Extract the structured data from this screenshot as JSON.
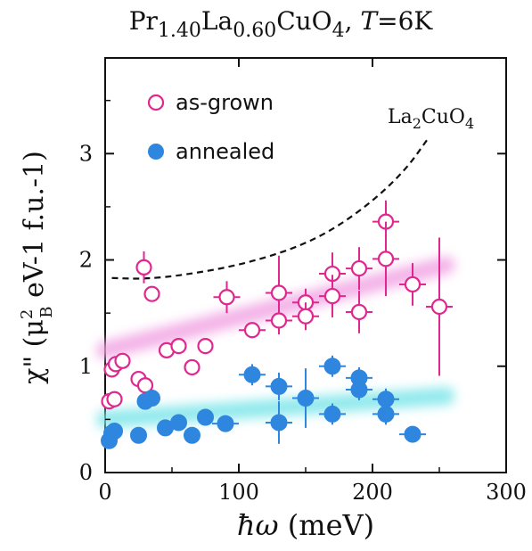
{
  "chart_data": {
    "type": "scatter",
    "title": {
      "parts": [
        {
          "text": "Pr",
          "sub": false
        },
        {
          "text": "1.40",
          "sub": true
        },
        {
          "text": "La",
          "sub": false
        },
        {
          "text": "0.60",
          "sub": true
        },
        {
          "text": "CuO",
          "sub": false
        },
        {
          "text": "4",
          "sub": true
        },
        {
          "text": ", ",
          "sub": false
        },
        {
          "text": "T",
          "sub": false,
          "italic": true
        },
        {
          "text": "=6K",
          "sub": false
        }
      ]
    },
    "xlabel": {
      "symbol": "ħω",
      "unit": " (meV)"
    },
    "ylabel": {
      "prefix": "χ\" (μ",
      "sup": "2",
      "sub": "B",
      "suffix": " eV-1 f.u.-1)"
    },
    "xlim": [
      0,
      300
    ],
    "ylim": [
      0,
      3.9
    ],
    "xticks": [
      0,
      100,
      200,
      300
    ],
    "yticks": [
      0,
      1,
      2,
      3
    ],
    "grid": false,
    "legend": {
      "placement": "top-left",
      "entries": [
        {
          "label": "as-grown",
          "marker": "open-circle",
          "color": "#e0268f"
        },
        {
          "label": "annealed",
          "marker": "filled-circle",
          "color": "#2e86de"
        }
      ]
    },
    "series": [
      {
        "name": "as-grown",
        "color": "#e0268f",
        "marker": "open-circle",
        "points": [
          {
            "x": 3,
            "y": 0.67,
            "xerr": 0,
            "yerr": 0
          },
          {
            "x": 7,
            "y": 0.69,
            "xerr": 0,
            "yerr": 0
          },
          {
            "x": 5,
            "y": 0.97,
            "xerr": 0,
            "yerr": 0
          },
          {
            "x": 8,
            "y": 1.02,
            "xerr": 0,
            "yerr": 0
          },
          {
            "x": 13,
            "y": 1.05,
            "xerr": 0,
            "yerr": 0
          },
          {
            "x": 25,
            "y": 0.88,
            "xerr": 0,
            "yerr": 0
          },
          {
            "x": 30,
            "y": 0.82,
            "xerr": 0,
            "yerr": 0
          },
          {
            "x": 29,
            "y": 1.93,
            "xerr": 0,
            "yerr": 0.15
          },
          {
            "x": 35,
            "y": 1.68,
            "xerr": 0,
            "yerr": 0
          },
          {
            "x": 46,
            "y": 1.15,
            "xerr": 0,
            "yerr": 0
          },
          {
            "x": 55,
            "y": 1.19,
            "xerr": 0,
            "yerr": 0
          },
          {
            "x": 65,
            "y": 0.99,
            "xerr": 0,
            "yerr": 0
          },
          {
            "x": 75,
            "y": 1.19,
            "xerr": 0,
            "yerr": 0
          },
          {
            "x": 91,
            "y": 1.65,
            "xerr": 10,
            "yerr": 0.15
          },
          {
            "x": 110,
            "y": 1.34,
            "xerr": 10,
            "yerr": 0.06
          },
          {
            "x": 130,
            "y": 1.69,
            "xerr": 10,
            "yerr": 0.35
          },
          {
            "x": 130,
            "y": 1.43,
            "xerr": 10,
            "yerr": 0.13
          },
          {
            "x": 150,
            "y": 1.6,
            "xerr": 10,
            "yerr": 0.13
          },
          {
            "x": 150,
            "y": 1.47,
            "xerr": 10,
            "yerr": 0.13
          },
          {
            "x": 170,
            "y": 1.87,
            "xerr": 10,
            "yerr": 0.2
          },
          {
            "x": 170,
            "y": 1.66,
            "xerr": 10,
            "yerr": 0.2
          },
          {
            "x": 190,
            "y": 1.92,
            "xerr": 10,
            "yerr": 0.2
          },
          {
            "x": 190,
            "y": 1.51,
            "xerr": 10,
            "yerr": 0.2
          },
          {
            "x": 210,
            "y": 2.36,
            "xerr": 10,
            "yerr": 0.2
          },
          {
            "x": 210,
            "y": 2.01,
            "xerr": 10,
            "yerr": 0.35
          },
          {
            "x": 230,
            "y": 1.77,
            "xerr": 10,
            "yerr": 0.2
          },
          {
            "x": 250,
            "y": 1.56,
            "xerr": 10,
            "yerr": 0.65
          }
        ]
      },
      {
        "name": "annealed",
        "color": "#2e86de",
        "marker": "filled-circle",
        "points": [
          {
            "x": 3,
            "y": 0.3,
            "xerr": 0,
            "yerr": 0
          },
          {
            "x": 5,
            "y": 0.37,
            "xerr": 0,
            "yerr": 0
          },
          {
            "x": 7,
            "y": 0.39,
            "xerr": 0,
            "yerr": 0
          },
          {
            "x": 25,
            "y": 0.35,
            "xerr": 0,
            "yerr": 0
          },
          {
            "x": 30,
            "y": 0.67,
            "xerr": 0,
            "yerr": 0
          },
          {
            "x": 35,
            "y": 0.7,
            "xerr": 0,
            "yerr": 0
          },
          {
            "x": 45,
            "y": 0.42,
            "xerr": 0,
            "yerr": 0
          },
          {
            "x": 55,
            "y": 0.47,
            "xerr": 0,
            "yerr": 0
          },
          {
            "x": 65,
            "y": 0.35,
            "xerr": 0,
            "yerr": 0
          },
          {
            "x": 75,
            "y": 0.52,
            "xerr": 0,
            "yerr": 0
          },
          {
            "x": 90,
            "y": 0.46,
            "xerr": 10,
            "yerr": 0.05
          },
          {
            "x": 110,
            "y": 0.92,
            "xerr": 10,
            "yerr": 0.1
          },
          {
            "x": 130,
            "y": 0.81,
            "xerr": 10,
            "yerr": 0.13
          },
          {
            "x": 130,
            "y": 0.47,
            "xerr": 10,
            "yerr": 0.2
          },
          {
            "x": 150,
            "y": 0.7,
            "xerr": 10,
            "yerr": 0.28
          },
          {
            "x": 170,
            "y": 1.0,
            "xerr": 10,
            "yerr": 0.1
          },
          {
            "x": 170,
            "y": 0.55,
            "xerr": 10,
            "yerr": 0.1
          },
          {
            "x": 190,
            "y": 0.89,
            "xerr": 10,
            "yerr": 0.1
          },
          {
            "x": 190,
            "y": 0.78,
            "xerr": 10,
            "yerr": 0.1
          },
          {
            "x": 210,
            "y": 0.69,
            "xerr": 10,
            "yerr": 0.1
          },
          {
            "x": 210,
            "y": 0.55,
            "xerr": 10,
            "yerr": 0.1
          },
          {
            "x": 230,
            "y": 0.36,
            "xerr": 10,
            "yerr": 0.04
          }
        ]
      }
    ],
    "guides": [
      {
        "kind": "band",
        "color": "#f2a6e4",
        "from": [
          0,
          1.15
        ],
        "to": [
          255,
          1.95
        ]
      },
      {
        "kind": "band",
        "color": "#7fe6ea",
        "from": [
          0,
          0.5
        ],
        "to": [
          255,
          0.72
        ]
      }
    ],
    "reference_curve": {
      "label": {
        "base": "La",
        "sub1": "2",
        "mid": "CuO",
        "sub2": "4"
      },
      "style": "dashed",
      "color": "#111111",
      "points": [
        [
          5,
          1.83
        ],
        [
          30,
          1.82
        ],
        [
          60,
          1.86
        ],
        [
          100,
          1.95
        ],
        [
          140,
          2.1
        ],
        [
          170,
          2.28
        ],
        [
          200,
          2.55
        ],
        [
          225,
          2.85
        ],
        [
          242,
          3.15
        ]
      ]
    }
  }
}
